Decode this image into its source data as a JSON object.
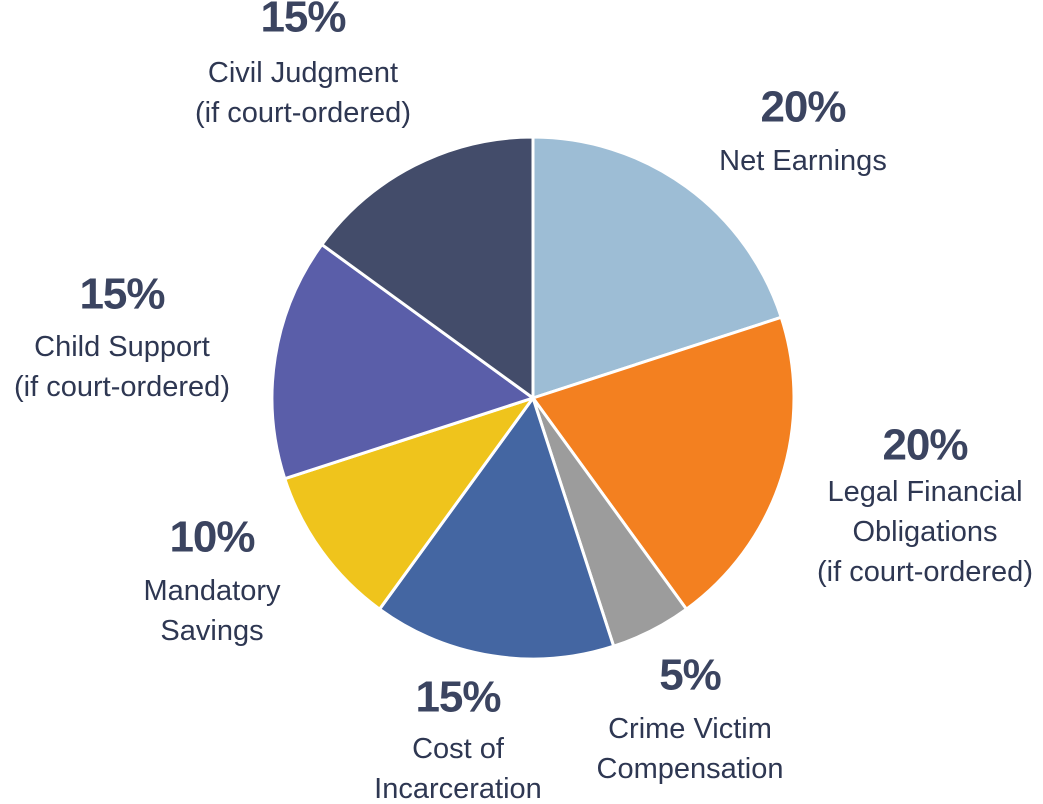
{
  "chart_data": {
    "type": "pie",
    "categories": [
      "Net Earnings",
      "Legal Financial\nObligations\n(if court-ordered)",
      "Crime Victim\nCompensation",
      "Cost of\nIncarceration",
      "Mandatory\nSavings",
      "Child Support\n(if court-ordered)",
      "Civil Judgment\n(if court-ordered)"
    ],
    "values": [
      20,
      20,
      5,
      15,
      10,
      15,
      15
    ],
    "value_labels": [
      "20%",
      "20%",
      "5%",
      "15%",
      "10%",
      "15%",
      "15%"
    ],
    "colors": [
      "#9dbdd5",
      "#f38020",
      "#9c9c9c",
      "#4466a2",
      "#efc41c",
      "#5a5ea9",
      "#434c6a"
    ]
  }
}
